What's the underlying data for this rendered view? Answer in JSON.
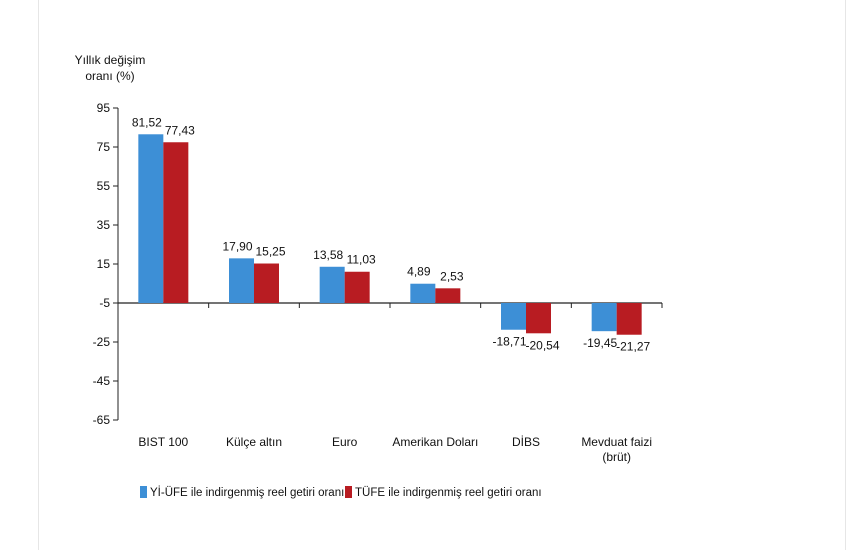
{
  "chart_data": {
    "type": "bar",
    "title": "",
    "ylabel_lines": [
      "Yıllık değişim",
      "oranı (%)"
    ],
    "xlabel": "",
    "ylim": [
      -65,
      95
    ],
    "yticks": [
      95,
      75,
      55,
      35,
      15,
      -5,
      -25,
      -45,
      -65
    ],
    "ytick_labels": [
      "95",
      "75",
      "55",
      "35",
      "15",
      "-5",
      "-25",
      "-45",
      "-65"
    ],
    "baseline": -5,
    "grid": false,
    "legend_position": "bottom",
    "categories": [
      {
        "lines": [
          "BIST 100"
        ]
      },
      {
        "lines": [
          "Külçe altın"
        ]
      },
      {
        "lines": [
          "Euro"
        ]
      },
      {
        "lines": [
          "Amerikan Doları"
        ]
      },
      {
        "lines": [
          "DİBS"
        ]
      },
      {
        "lines": [
          "Mevduat faizi",
          "(brüt)"
        ]
      }
    ],
    "series": [
      {
        "name": "Yİ-ÜFE ile indirgenmiş reel getiri oranı",
        "color": "#3d8fd6",
        "values": [
          81.52,
          17.9,
          13.58,
          4.89,
          -18.71,
          -19.45
        ],
        "labels": [
          "81,52",
          "17,90",
          "13,58",
          "4,89",
          "-18,71",
          "-19,45"
        ]
      },
      {
        "name": "TÜFE ile indirgenmiş reel getiri oranı",
        "color": "#b81c22",
        "values": [
          77.43,
          15.25,
          11.03,
          2.53,
          -20.54,
          -21.27
        ],
        "labels": [
          "77,43",
          "15,25",
          "11,03",
          "2,53",
          "-20,54",
          "-21,27"
        ]
      }
    ]
  }
}
